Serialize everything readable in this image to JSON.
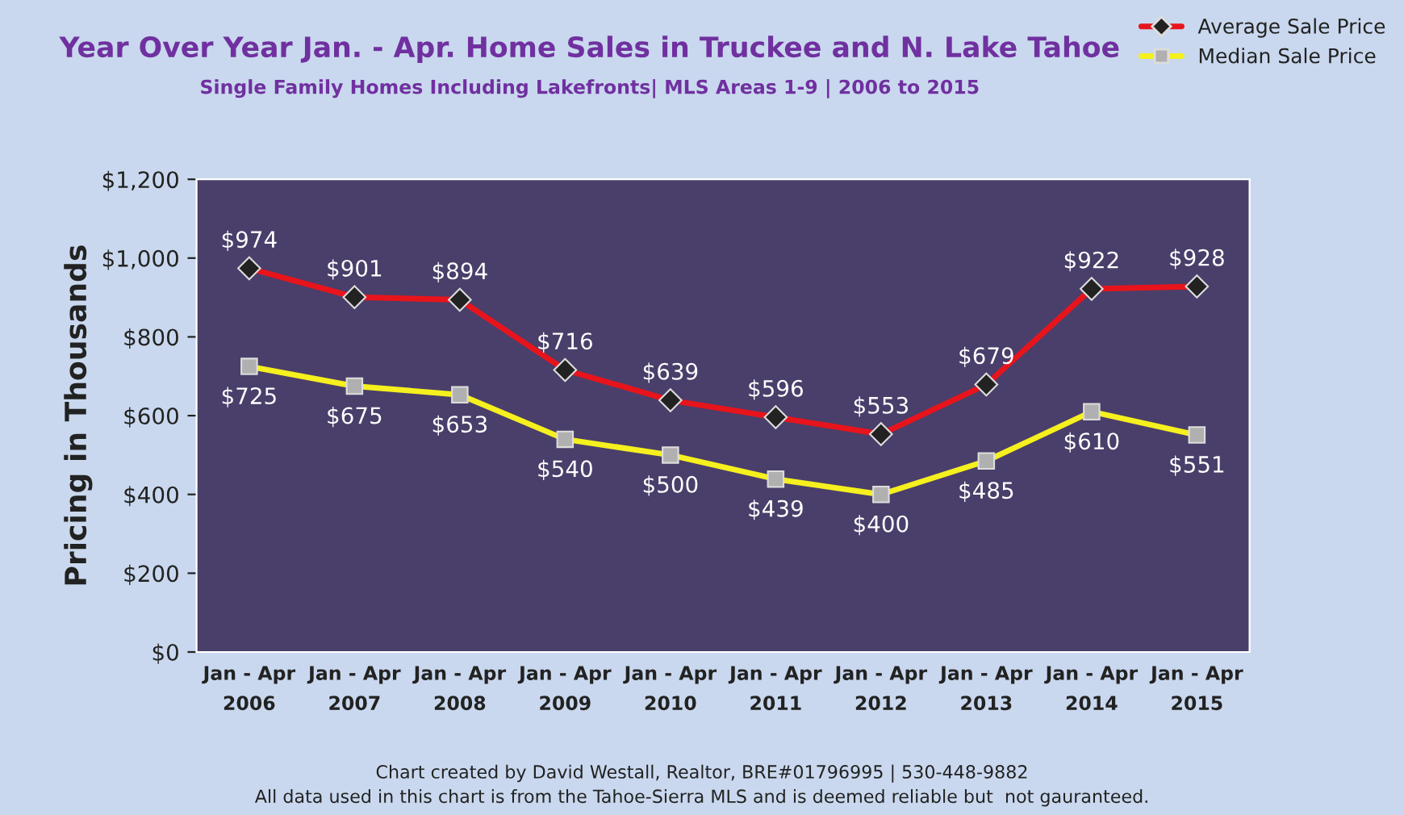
{
  "chart_data": {
    "type": "line",
    "title": "Year Over Year Jan. - Apr. Home Sales in Truckee and N. Lake Tahoe",
    "subtitle": "Single Family Homes Including Lakefronts| MLS Areas 1-9 | 2006 to 2015",
    "ylabel": "Pricing in Thousands",
    "categories": [
      "Jan - Apr\n2006",
      "Jan - Apr\n2007",
      "Jan - Apr\n2008",
      "Jan - Apr\n2009",
      "Jan - Apr\n2010",
      "Jan - Apr\n2011",
      "Jan - Apr\n2012",
      "Jan - Apr\n2013",
      "Jan - Apr\n2014",
      "Jan - Apr\n2015"
    ],
    "series": [
      {
        "name": "Average Sale Price",
        "color": "#e8141c",
        "marker": "diamond",
        "values": [
          974,
          901,
          894,
          716,
          639,
          596,
          553,
          679,
          922,
          928
        ],
        "value_labels": [
          "$974",
          "$901",
          "$894",
          "$716",
          "$639",
          "$596",
          "$553",
          "$679",
          "$922",
          "$928"
        ]
      },
      {
        "name": "Median Sale Price",
        "color": "#f5f01e",
        "marker": "square",
        "values": [
          725,
          675,
          653,
          540,
          500,
          439,
          400,
          485,
          610,
          551
        ],
        "value_labels": [
          "$725",
          "$675",
          "$653",
          "$540",
          "$500",
          "$439",
          "$400",
          "$485",
          "$610",
          "$551"
        ]
      }
    ],
    "ylim": [
      0,
      1200
    ],
    "yticks": [
      {
        "value": 0,
        "label": "$0"
      },
      {
        "value": 200,
        "label": "$200"
      },
      {
        "value": 400,
        "label": "$400"
      },
      {
        "value": 600,
        "label": "$600"
      },
      {
        "value": 800,
        "label": "$800"
      },
      {
        "value": 1000,
        "label": "$1,000"
      },
      {
        "value": 1200,
        "label": "$1,200"
      }
    ],
    "grid": false,
    "legend": "top right",
    "annotations": [
      "Chart created by David Westall, Realtor, BRE#01796995 | 530-448-9882",
      "All data used in this chart is from the Tahoe-Sierra MLS and is deemed reliable but  not gauranteed."
    ]
  }
}
